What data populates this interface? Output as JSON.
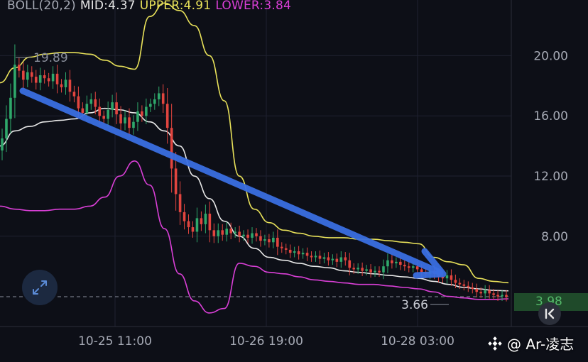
{
  "indicator": {
    "name": "BOLL(20,2)",
    "mid": "MID:4.37",
    "upper": "UPPER:4.91",
    "lower": "LOWER:3.84"
  },
  "colors": {
    "background": "#0d0f17",
    "grid": "#1e2130",
    "mid": "#e8e8e8",
    "upper": "#e9e25a",
    "lower": "#d93fd6",
    "up": "#2fa86b",
    "down": "#e2453f",
    "arrow": "#3a6fe0",
    "axis_text": "#a6aab5"
  },
  "current_price": "3.98",
  "watermark": "@ Ar-凌志",
  "icons": {
    "expand": "expand-arrows-icon",
    "back": "chevron-back-icon",
    "logo": "diamond-logo-icon"
  },
  "chart_data": {
    "type": "candlestick",
    "title": "BOLL(20,2) MID:4.37 UPPER:4.91 LOWER:3.84",
    "y_ticks": [
      20.0,
      16.0,
      12.0,
      8.0
    ],
    "y_tick_labels": [
      "20.00",
      "16.00",
      "12.00",
      "8.00"
    ],
    "x_tick_labels": [
      "10-25 11:00",
      "10-26 19:00",
      "10-28 03:00"
    ],
    "ylim": [
      2.0,
      23.7
    ],
    "high_marker": "19.89",
    "low_marker": "3.66",
    "last_price": 3.98,
    "candle_count": 120,
    "bollinger": {
      "upper": [
        18.2,
        19.2,
        19.9,
        20.1,
        20.2,
        20.2,
        20.1,
        19.7,
        19.3,
        19.1,
        22.6,
        23.5,
        23.0,
        22.0,
        20.0,
        17.0,
        12.0,
        9.8,
        8.9,
        8.4,
        8.2,
        8.0,
        7.9,
        7.9,
        7.8,
        7.8,
        7.7,
        7.6,
        7.5,
        6.6,
        6.3,
        6.1,
        5.2,
        5.0,
        4.91
      ],
      "mid": [
        14.0,
        15.0,
        15.3,
        15.6,
        15.7,
        15.8,
        16.2,
        16.5,
        16.4,
        16.2,
        15.6,
        15.0,
        14.0,
        12.0,
        10.5,
        9.0,
        8.0,
        7.2,
        6.6,
        6.4,
        6.2,
        6.0,
        5.9,
        5.7,
        5.6,
        5.5,
        5.4,
        5.3,
        5.2,
        5.0,
        4.8,
        4.6,
        4.5,
        4.4,
        4.37
      ],
      "lower": [
        10.0,
        9.8,
        9.7,
        9.7,
        9.8,
        9.8,
        10.0,
        10.6,
        12.0,
        13.0,
        11.4,
        8.5,
        5.5,
        3.7,
        2.9,
        3.2,
        6.2,
        6.0,
        5.6,
        5.5,
        5.3,
        5.1,
        5.0,
        4.9,
        4.8,
        4.8,
        4.7,
        4.6,
        4.5,
        4.3,
        4.0,
        3.9,
        3.8,
        3.8,
        3.84
      ]
    },
    "candles_close": [
      14.5,
      15.8,
      17.2,
      19.4,
      19.0,
      18.4,
      18.9,
      18.6,
      18.2,
      18.7,
      18.5,
      18.3,
      18.8,
      18.1,
      17.9,
      18.4,
      17.6,
      17.3,
      16.5,
      16.2,
      16.8,
      17.1,
      16.6,
      16.0,
      15.8,
      16.4,
      16.9,
      16.1,
      15.5,
      15.9,
      15.2,
      15.6,
      16.3,
      16.0,
      16.6,
      16.8,
      17.1,
      17.5,
      16.8,
      15.2,
      12.5,
      10.8,
      9.6,
      9.0,
      8.6,
      8.3,
      9.2,
      8.8,
      9.5,
      8.4,
      8.0,
      8.4,
      8.1,
      8.5,
      8.2,
      8.3,
      8.0,
      8.1,
      7.9,
      8.2,
      8.0,
      7.7,
      7.8,
      7.6,
      7.9,
      7.3,
      7.2,
      7.1,
      6.9,
      7.0,
      6.8,
      6.9,
      6.7,
      6.6,
      6.7,
      6.5,
      6.6,
      6.4,
      6.5,
      6.3,
      6.6,
      6.4,
      5.9,
      5.8,
      5.9,
      5.7,
      5.8,
      5.6,
      5.7,
      5.6,
      6.0,
      6.4,
      6.2,
      6.3,
      6.1,
      6.0,
      5.9,
      6.0,
      5.8,
      5.6,
      5.5,
      5.7,
      5.5,
      5.3,
      5.2,
      5.4,
      5.1,
      4.9,
      4.8,
      4.7,
      4.6,
      4.5,
      4.3,
      4.2,
      4.4,
      4.2,
      4.1,
      4.0,
      4.1,
      3.98
    ]
  }
}
